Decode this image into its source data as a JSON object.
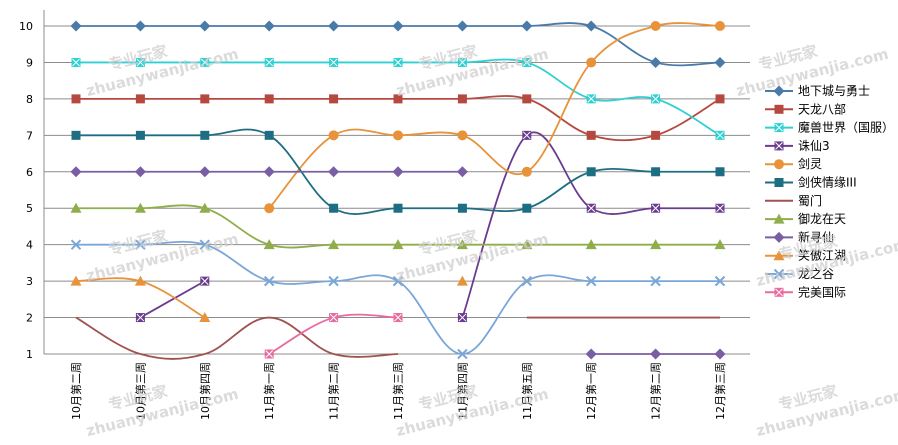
{
  "chart_data": {
    "type": "line",
    "title": "",
    "xlabel": "",
    "ylabel": "",
    "ylim": [
      1,
      10
    ],
    "yticks": [
      1,
      2,
      3,
      4,
      5,
      6,
      7,
      8,
      9,
      10
    ],
    "grid": "horizontal",
    "legend_position": "right",
    "categories": [
      "10月第二周",
      "10月第三周",
      "10月第四周",
      "11月第一周",
      "11月第二周",
      "11月第三周",
      "11月第四周",
      "11月第五周",
      "12月第一周",
      "12月第二周",
      "12月第三周"
    ],
    "series": [
      {
        "name": "地下城与勇士",
        "color": "#4a7aa8",
        "marker": "diamond",
        "values": [
          10,
          10,
          10,
          10,
          10,
          10,
          10,
          10,
          10,
          9,
          9
        ]
      },
      {
        "name": "天龙八部",
        "color": "#b5493f",
        "marker": "square",
        "values": [
          8,
          8,
          8,
          8,
          8,
          8,
          8,
          8,
          7,
          7,
          8
        ]
      },
      {
        "name": "魔兽世界（国服）",
        "color": "#2fd0d3",
        "marker": "x-square",
        "values": [
          9,
          9,
          9,
          9,
          9,
          9,
          9,
          9,
          8,
          8,
          7
        ]
      },
      {
        "name": "诛仙3",
        "color": "#6b3b8f",
        "marker": "x-square",
        "values": [
          null,
          2,
          3,
          null,
          null,
          null,
          2,
          7,
          5,
          5,
          5
        ]
      },
      {
        "name": "剑灵",
        "color": "#e8923a",
        "marker": "circle",
        "values": [
          null,
          null,
          null,
          5,
          7,
          7,
          7,
          6,
          9,
          10,
          10
        ]
      },
      {
        "name": "剑侠情缘III",
        "color": "#1e6e83",
        "marker": "square",
        "values": [
          7,
          7,
          7,
          7,
          5,
          5,
          5,
          5,
          6,
          6,
          6
        ]
      },
      {
        "name": "蜀门",
        "color": "#a0524f",
        "marker": "none",
        "values": [
          2,
          1,
          1,
          2,
          1,
          1,
          null,
          2,
          2,
          2,
          2
        ]
      },
      {
        "name": "御龙在天",
        "color": "#8fad4b",
        "marker": "triangle",
        "values": [
          5,
          5,
          5,
          4,
          4,
          4,
          4,
          4,
          4,
          4,
          4
        ]
      },
      {
        "name": "新寻仙",
        "color": "#7a5ea3",
        "marker": "diamond",
        "values": [
          6,
          6,
          6,
          6,
          6,
          6,
          6,
          null,
          1,
          1,
          1
        ]
      },
      {
        "name": "笑傲江湖",
        "color": "#e8923a",
        "marker": "triangle",
        "values": [
          3,
          3,
          2,
          null,
          null,
          null,
          3,
          null,
          null,
          null,
          null
        ]
      },
      {
        "name": "龙之谷",
        "color": "#7aa7d8",
        "marker": "x",
        "values": [
          4,
          4,
          4,
          3,
          3,
          3,
          1,
          3,
          3,
          3,
          3
        ]
      },
      {
        "name": "完美国际",
        "color": "#e86aa0",
        "marker": "x-square",
        "values": [
          null,
          null,
          null,
          1,
          2,
          2,
          null,
          null,
          null,
          null,
          null
        ]
      }
    ]
  },
  "watermark": {
    "cn": "专业玩家",
    "en": "zhuanywanjia.com"
  }
}
